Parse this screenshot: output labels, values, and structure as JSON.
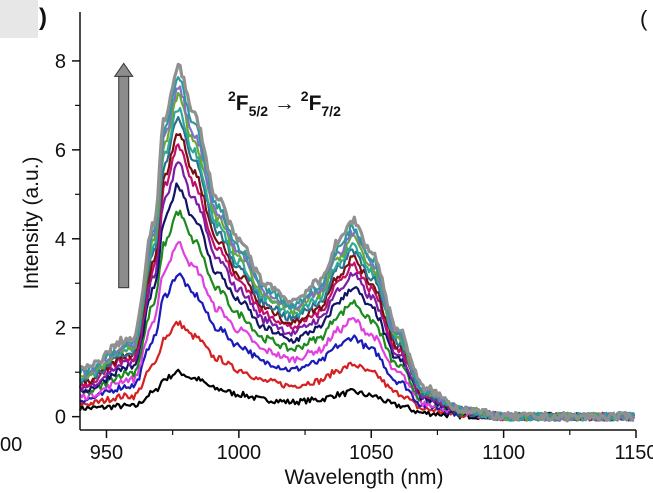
{
  "fragments": {
    "top_left": ")",
    "top_right": "(",
    "left_edge_tick": "00"
  },
  "chart_data": {
    "type": "line",
    "xlabel": "Wavelength (nm)",
    "ylabel": "Intensity (a.u.)",
    "annotation": {
      "base": "F",
      "left_sup": "2",
      "left_sub": "5/2",
      "arrow": "→",
      "right_sup": "2",
      "right_sub": "7/2"
    },
    "xlim": [
      940,
      1150
    ],
    "ylim": [
      -0.3,
      9.1
    ],
    "xticks": [
      950,
      1000,
      1050,
      1100,
      1150
    ],
    "xtick_labels": [
      "950",
      "1000",
      "1050",
      "1100",
      "1150"
    ],
    "yticks": [
      0,
      2,
      4,
      6,
      8
    ],
    "ytick_labels": [
      "0",
      "2",
      "4",
      "6",
      "8"
    ],
    "grid": false,
    "legend": "none",
    "x": [
      940,
      960,
      968,
      972,
      977,
      983,
      992,
      1000,
      1010,
      1020,
      1030,
      1038,
      1043,
      1050,
      1060,
      1070,
      1085,
      1100,
      1150
    ],
    "profile": [
      0.05,
      0.2,
      0.55,
      0.85,
      1.0,
      0.86,
      0.62,
      0.5,
      0.38,
      0.33,
      0.38,
      0.5,
      0.56,
      0.47,
      0.25,
      0.08,
      0.02,
      0.0,
      0.0
    ],
    "series": [
      {
        "color": "#000000",
        "peak": 1.0
      },
      {
        "color": "#d42020",
        "peak": 2.1
      },
      {
        "color": "#1a1ab8",
        "peak": 3.2
      },
      {
        "color": "#e040e0",
        "peak": 3.9
      },
      {
        "color": "#1e8a1e",
        "peak": 4.6
      },
      {
        "color": "#121266",
        "peak": 5.2
      },
      {
        "color": "#7a1ea8",
        "peak": 5.7
      },
      {
        "color": "#c0106a",
        "peak": 6.1
      },
      {
        "color": "#7a0e0e",
        "peak": 6.4
      },
      {
        "color": "#2a7090",
        "peak": 6.7
      },
      {
        "color": "#2fa89a",
        "peak": 6.95
      },
      {
        "color": "#6aa830",
        "peak": 7.2
      },
      {
        "color": "#8070c8",
        "peak": 7.4
      },
      {
        "color": "#2a9a9a",
        "peak": 7.6
      },
      {
        "color": "#909090",
        "peak": 7.9
      }
    ],
    "arrow": {
      "direction": "up",
      "color": "#8c8c8c",
      "x": 955,
      "y_start": 2.9,
      "y_end": 7.9
    }
  }
}
